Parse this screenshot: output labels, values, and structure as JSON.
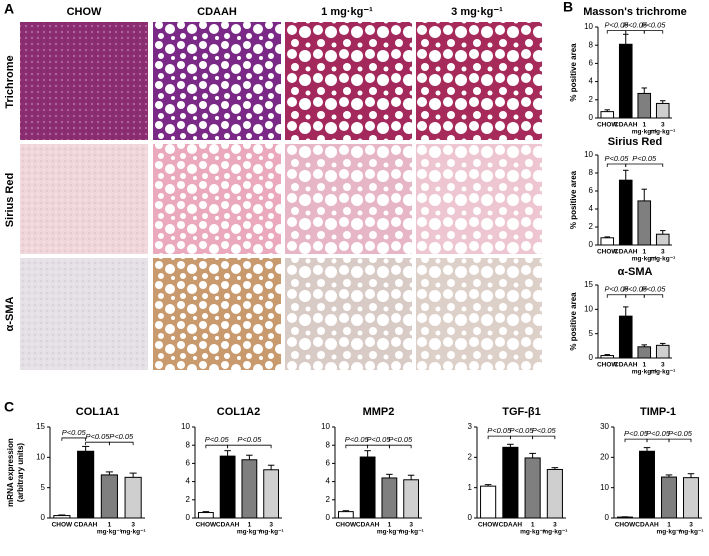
{
  "panel_labels": [
    "A",
    "B",
    "C"
  ],
  "panel_a": {
    "columns": [
      "CHOW",
      "CDAAH",
      "1 mg·kg⁻¹",
      "3 mg·kg⁻¹"
    ],
    "rows": [
      "Trichrome",
      "Sirius Red",
      "α-SMA"
    ]
  },
  "chart_data": [
    {
      "type": "bar",
      "title": "Masson's trichrome",
      "ylabel": [
        "% positive area"
      ],
      "categories": [
        "CHOW",
        "CDAAH",
        "1",
        "3"
      ],
      "category_sublabels": [
        null,
        null,
        "mg·kg⁻¹",
        "mg·kg⁻¹"
      ],
      "values": [
        0.7,
        8.1,
        2.7,
        1.6
      ],
      "errors": [
        0.2,
        1.1,
        0.6,
        0.3
      ],
      "colors": [
        "#ffffff",
        "#000000",
        "#7f7f7f",
        "#cfcfcf"
      ],
      "ylim": [
        0,
        10
      ],
      "yticks": [
        0,
        2,
        4,
        6,
        8,
        10
      ],
      "annotations": [
        {
          "text": "P<0.05",
          "from": 0,
          "to": 1,
          "y": 9.6
        },
        {
          "text": "P<0.05",
          "from": 1,
          "to": 2,
          "y": 9.6
        },
        {
          "text": "P<0.05",
          "from": 2,
          "to": 3,
          "y": 9.6
        }
      ]
    },
    {
      "type": "bar",
      "title": "Sirius Red",
      "ylabel": [
        "% positive area"
      ],
      "categories": [
        "CHOW",
        "CDAAH",
        "1",
        "3"
      ],
      "category_sublabels": [
        null,
        null,
        "mg·kg⁻¹",
        "mg·kg⁻¹"
      ],
      "values": [
        0.8,
        7.2,
        4.9,
        1.2
      ],
      "errors": [
        0.1,
        1.1,
        1.3,
        0.4
      ],
      "colors": [
        "#ffffff",
        "#000000",
        "#7f7f7f",
        "#cfcfcf"
      ],
      "ylim": [
        0,
        10
      ],
      "yticks": [
        0,
        2,
        4,
        6,
        8,
        10
      ],
      "annotations": [
        {
          "text": "P<0.05",
          "from": 0,
          "to": 1,
          "y": 9.0
        },
        {
          "text": "P<0.05",
          "from": 1,
          "to": 3,
          "y": 9.0
        }
      ]
    },
    {
      "type": "bar",
      "title": "α-SMA",
      "ylabel": [
        "% positive area"
      ],
      "categories": [
        "CHOW",
        "CDAAH",
        "1",
        "3"
      ],
      "category_sublabels": [
        null,
        null,
        "mg·kg⁻¹",
        "mg·kg⁻¹"
      ],
      "values": [
        0.5,
        8.6,
        2.3,
        2.6
      ],
      "errors": [
        0.2,
        1.9,
        0.4,
        0.4
      ],
      "colors": [
        "#ffffff",
        "#000000",
        "#7f7f7f",
        "#cfcfcf"
      ],
      "ylim": [
        0,
        15
      ],
      "yticks": [
        0,
        5,
        10,
        15
      ],
      "annotations": [
        {
          "text": "P<0.05",
          "from": 0,
          "to": 1,
          "y": 13
        },
        {
          "text": "P<0.05",
          "from": 1,
          "to": 2,
          "y": 13
        },
        {
          "text": "P<0.05",
          "from": 2,
          "to": 3,
          "y": 13
        }
      ]
    },
    {
      "type": "bar",
      "title": "COL1A1",
      "ylabel": [
        "mRNA expression",
        "(arbitrary units)"
      ],
      "categories": [
        "CHOW",
        "CDAAH",
        "1",
        "3"
      ],
      "category_sublabels": [
        null,
        null,
        "mg·kg⁻¹",
        "mg·kg⁻¹"
      ],
      "values": [
        0.4,
        11.0,
        7.1,
        6.7
      ],
      "errors": [
        0.1,
        0.8,
        0.5,
        0.7
      ],
      "colors": [
        "#ffffff",
        "#000000",
        "#7f7f7f",
        "#cfcfcf"
      ],
      "ylim": [
        0,
        15
      ],
      "yticks": [
        0,
        5,
        10,
        15
      ],
      "annotations": [
        {
          "text": "P<0.05",
          "from": 0,
          "to": 1,
          "y": 13.2
        },
        {
          "text": "P<0.05",
          "from": 1,
          "to": 2,
          "y": 12.5
        },
        {
          "text": "P<0.05",
          "from": 2,
          "to": 3,
          "y": 12.5
        }
      ]
    },
    {
      "type": "bar",
      "title": "COL1A2",
      "categories": [
        "CHOW",
        "CDAAH",
        "1",
        "3"
      ],
      "category_sublabels": [
        null,
        null,
        "mg·kg⁻¹",
        "mg·kg⁻¹"
      ],
      "values": [
        0.6,
        6.8,
        6.4,
        5.3
      ],
      "errors": [
        0.1,
        0.6,
        0.5,
        0.5
      ],
      "colors": [
        "#ffffff",
        "#000000",
        "#7f7f7f",
        "#cfcfcf"
      ],
      "ylim": [
        0,
        10
      ],
      "yticks": [
        0,
        2,
        4,
        6,
        8,
        10
      ],
      "annotations": [
        {
          "text": "P<0.05",
          "from": 0,
          "to": 1,
          "y": 8.0
        },
        {
          "text": "P<0.05",
          "from": 1,
          "to": 3,
          "y": 8.0
        }
      ]
    },
    {
      "type": "bar",
      "title": "MMP2",
      "categories": [
        "CHOW",
        "CDAAH",
        "1",
        "3"
      ],
      "category_sublabels": [
        null,
        null,
        "mg·kg⁻¹",
        "mg·kg⁻¹"
      ],
      "values": [
        0.7,
        6.7,
        4.4,
        4.2
      ],
      "errors": [
        0.1,
        0.7,
        0.4,
        0.5
      ],
      "colors": [
        "#ffffff",
        "#000000",
        "#7f7f7f",
        "#cfcfcf"
      ],
      "ylim": [
        0,
        10
      ],
      "yticks": [
        0,
        2,
        4,
        6,
        8,
        10
      ],
      "annotations": [
        {
          "text": "P<0.05",
          "from": 0,
          "to": 1,
          "y": 8.0
        },
        {
          "text": "P<0.05",
          "from": 1,
          "to": 2,
          "y": 8.0
        },
        {
          "text": "P<0.05",
          "from": 2,
          "to": 3,
          "y": 8.0
        }
      ]
    },
    {
      "type": "bar",
      "title": "TGF-β1",
      "categories": [
        "CHOW",
        "CDAAH",
        "1",
        "3"
      ],
      "category_sublabels": [
        null,
        null,
        "mg·kg⁻¹",
        "mg·kg⁻¹"
      ],
      "values": [
        1.05,
        2.33,
        1.98,
        1.6
      ],
      "errors": [
        0.05,
        0.1,
        0.15,
        0.06
      ],
      "colors": [
        "#ffffff",
        "#000000",
        "#7f7f7f",
        "#cfcfcf"
      ],
      "ylim": [
        0,
        3
      ],
      "yticks": [
        0,
        1,
        2,
        3
      ],
      "annotations": [
        {
          "text": "P<0.05",
          "from": 0,
          "to": 1,
          "y": 2.7
        },
        {
          "text": "P<0.05",
          "from": 1,
          "to": 2,
          "y": 2.7
        },
        {
          "text": "P<0.05",
          "from": 2,
          "to": 3,
          "y": 2.7
        }
      ]
    },
    {
      "type": "bar",
      "title": "TIMP-1",
      "categories": [
        "CHOW",
        "CDAAH",
        "1",
        "3"
      ],
      "category_sublabels": [
        null,
        null,
        "mg·kg⁻¹",
        "mg·kg⁻¹"
      ],
      "values": [
        0.3,
        22,
        13.5,
        13.3
      ],
      "errors": [
        0.1,
        1.2,
        0.7,
        1.3
      ],
      "colors": [
        "#ffffff",
        "#000000",
        "#7f7f7f",
        "#cfcfcf"
      ],
      "ylim": [
        0,
        30
      ],
      "yticks": [
        0,
        10,
        20,
        30
      ],
      "annotations": [
        {
          "text": "P<0.05",
          "from": 0,
          "to": 1,
          "y": 26
        },
        {
          "text": "P<0.05",
          "from": 1,
          "to": 2,
          "y": 26
        },
        {
          "text": "P<0.05",
          "from": 2,
          "to": 3,
          "y": 26
        }
      ]
    }
  ]
}
